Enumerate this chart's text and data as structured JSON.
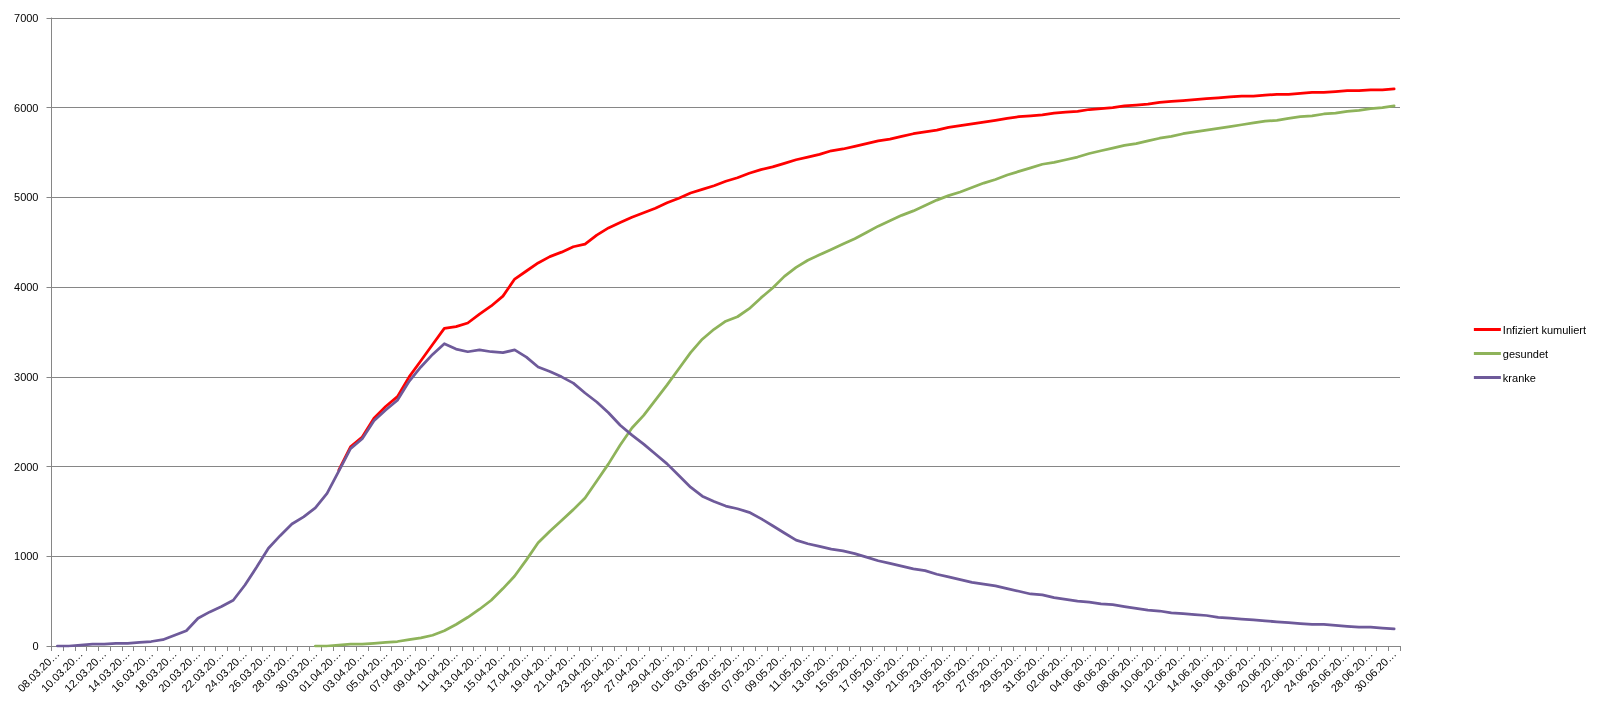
{
  "chart_data": {
    "type": "line",
    "categories": [
      "08.03.20…",
      null,
      "10.03.20…",
      null,
      "12.03.20…",
      null,
      "14.03.20…",
      null,
      "16.03.20…",
      null,
      "18.03.20…",
      null,
      "20.03.20…",
      null,
      "22.03.20…",
      null,
      "24.03.20…",
      null,
      "26.03.20…",
      null,
      "28.03.20…",
      null,
      "30.03.20…",
      null,
      "01.04.20…",
      null,
      "03.04.20…",
      null,
      "05.04.20…",
      null,
      "07.04.20…",
      null,
      "09.04.20…",
      null,
      "11.04.20…",
      null,
      "13.04.20…",
      null,
      "15.04.20…",
      null,
      "17.04.20…",
      null,
      "19.04.20…",
      null,
      "21.04.20…",
      null,
      "23.04.20…",
      null,
      "25.04.20…",
      null,
      "27.04.20…",
      null,
      "29.04.20…",
      null,
      "01.05.20…",
      null,
      "03.05.20…",
      null,
      "05.05.20…",
      null,
      "07.05.20…",
      null,
      "09.05.20…",
      null,
      "11.05.20…",
      null,
      "13.05.20…",
      null,
      "15.05.20…",
      null,
      "17.05.20…",
      null,
      "19.05.20…",
      null,
      "21.05.20…",
      null,
      "23.05.20…",
      null,
      "25.05.20…",
      null,
      "27.05.20…",
      null,
      "29.05.20…",
      null,
      "31.05.20…",
      null,
      "02.06.20…",
      null,
      "04.06.20…",
      null,
      "06.06.20…",
      null,
      "08.06.20…",
      null,
      "10.06.20…",
      null,
      "12.06.20…",
      null,
      "14.06.20…",
      null,
      "16.06.20…",
      null,
      "18.06.20…",
      null,
      "20.06.20…",
      null,
      "22.06.20…",
      null,
      "24.06.20…",
      null,
      "26.06.20…",
      null,
      "28.06.20…",
      null,
      "30.06.20…"
    ],
    "series": [
      {
        "name": "Infiziert kumuliert",
        "color": "#ff0000",
        "values": [
          null,
          null,
          null,
          null,
          null,
          null,
          null,
          null,
          null,
          null,
          null,
          null,
          null,
          null,
          null,
          null,
          null,
          null,
          null,
          null,
          null,
          null,
          null,
          null,
          1960,
          2220,
          2330,
          2540,
          2670,
          2780,
          3000,
          3180,
          3360,
          3540,
          3560,
          3600,
          3700,
          3790,
          3900,
          4090,
          4180,
          4270,
          4340,
          4390,
          4450,
          4480,
          4580,
          4660,
          4720,
          4780,
          4830,
          4880,
          4940,
          4990,
          5050,
          5090,
          5130,
          5180,
          5220,
          5270,
          5310,
          5340,
          5380,
          5420,
          5450,
          5480,
          5520,
          5540,
          5570,
          5600,
          5630,
          5650,
          5680,
          5710,
          5730,
          5750,
          5780,
          5800,
          5820,
          5840,
          5860,
          5880,
          5900,
          5910,
          5920,
          5940,
          5950,
          5960,
          5980,
          5990,
          6000,
          6020,
          6030,
          6040,
          6060,
          6070,
          6080,
          6090,
          6100,
          6110,
          6120,
          6130,
          6130,
          6140,
          6150,
          6150,
          6160,
          6170,
          6170,
          6180,
          6190,
          6190,
          6200,
          6200,
          6210
        ]
      },
      {
        "name": "gesundet",
        "color": "#8eb35a",
        "values": [
          null,
          null,
          null,
          null,
          null,
          null,
          null,
          null,
          null,
          null,
          null,
          null,
          null,
          null,
          null,
          null,
          null,
          null,
          null,
          null,
          null,
          null,
          0,
          0,
          10,
          20,
          20,
          30,
          40,
          50,
          70,
          90,
          120,
          170,
          240,
          320,
          410,
          510,
          640,
          780,
          960,
          1150,
          1280,
          1400,
          1520,
          1650,
          1840,
          2030,
          2240,
          2430,
          2570,
          2740,
          2910,
          3090,
          3270,
          3420,
          3530,
          3620,
          3670,
          3760,
          3880,
          3990,
          4120,
          4220,
          4300,
          4360,
          4420,
          4480,
          4540,
          4610,
          4680,
          4740,
          4800,
          4850,
          4910,
          4970,
          5020,
          5060,
          5110,
          5160,
          5200,
          5250,
          5290,
          5330,
          5370,
          5390,
          5420,
          5450,
          5490,
          5520,
          5550,
          5580,
          5600,
          5630,
          5660,
          5680,
          5710,
          5730,
          5750,
          5770,
          5790,
          5810,
          5830,
          5850,
          5860,
          5880,
          5900,
          5910,
          5930,
          5940,
          5960,
          5970,
          5990,
          6000,
          6020
        ]
      },
      {
        "name": "kranke",
        "color": "#6e5a9a",
        "values": [
          0,
          0,
          10,
          20,
          20,
          30,
          30,
          40,
          50,
          70,
          120,
          170,
          310,
          380,
          440,
          510,
          680,
          880,
          1090,
          1230,
          1360,
          1440,
          1540,
          1700,
          1950,
          2200,
          2310,
          2510,
          2630,
          2740,
          2950,
          3110,
          3250,
          3370,
          3310,
          3280,
          3300,
          3280,
          3270,
          3300,
          3220,
          3110,
          3060,
          3000,
          2930,
          2820,
          2720,
          2600,
          2460,
          2350,
          2250,
          2140,
          2030,
          1900,
          1770,
          1670,
          1610,
          1560,
          1530,
          1490,
          1420,
          1340,
          1260,
          1180,
          1140,
          1110,
          1080,
          1060,
          1030,
          990,
          950,
          920,
          890,
          860,
          840,
          800,
          770,
          740,
          710,
          690,
          670,
          640,
          610,
          580,
          570,
          540,
          520,
          500,
          490,
          470,
          460,
          440,
          420,
          400,
          390,
          370,
          360,
          350,
          340,
          320,
          310,
          300,
          290,
          280,
          270,
          260,
          250,
          240,
          240,
          230,
          220,
          210,
          210,
          200,
          190
        ]
      }
    ],
    "ylim": [
      0,
      7000
    ],
    "yticks": [
      0,
      1000,
      2000,
      3000,
      4000,
      5000,
      6000,
      7000
    ],
    "grid": "y",
    "legend": "right"
  }
}
